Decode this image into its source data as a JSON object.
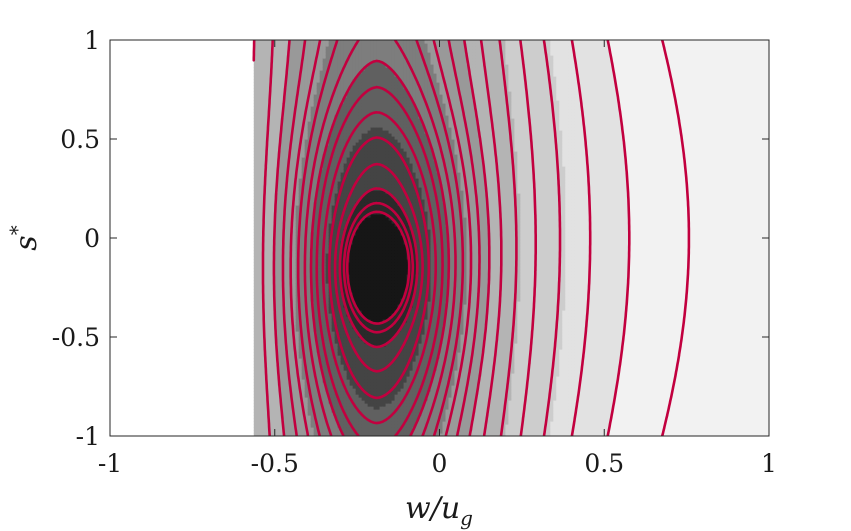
{
  "chart_data": {
    "type": "contour",
    "xlabel": "w/u",
    "xlabel_subscript": "g",
    "ylabel": "s",
    "ylabel_superscript": "*",
    "xlim": [
      -1,
      1
    ],
    "ylim": [
      -1,
      1
    ],
    "xticks": [
      -1,
      -0.5,
      0,
      0.5,
      1
    ],
    "yticks": [
      -1,
      -0.5,
      0,
      0.5,
      1
    ],
    "xtick_labels": [
      "-1",
      "-0.5",
      "0",
      "0.5",
      "1"
    ],
    "ytick_labels": [
      "-1",
      "-0.5",
      "0",
      "0.5",
      "1"
    ],
    "grid": false,
    "legend": "none",
    "colors": {
      "contour_line": "#c2003f",
      "fill_levels": [
        "#f2f2f2",
        "#e2e2e2",
        "#cdcdcd",
        "#b4b4b4",
        "#999999",
        "#7d7d7d",
        "#606060",
        "#444444",
        "#2a2a2a",
        "#161616"
      ]
    },
    "field": {
      "center": [
        -0.19,
        -0.15
      ],
      "support_x": [
        -0.56,
        0.86
      ]
    },
    "contour_levels": [
      0.09,
      0.18,
      0.27,
      0.36,
      0.45,
      0.54,
      0.63,
      0.72,
      0.81,
      0.9,
      1.0,
      1.1,
      1.2,
      1.3,
      1.42,
      1.56,
      1.72,
      1.9,
      2.1,
      2.3
    ],
    "fill_thresholds": [
      2.35,
      1.9,
      1.5,
      1.2,
      0.95,
      0.72,
      0.52,
      0.34,
      0.18
    ]
  }
}
